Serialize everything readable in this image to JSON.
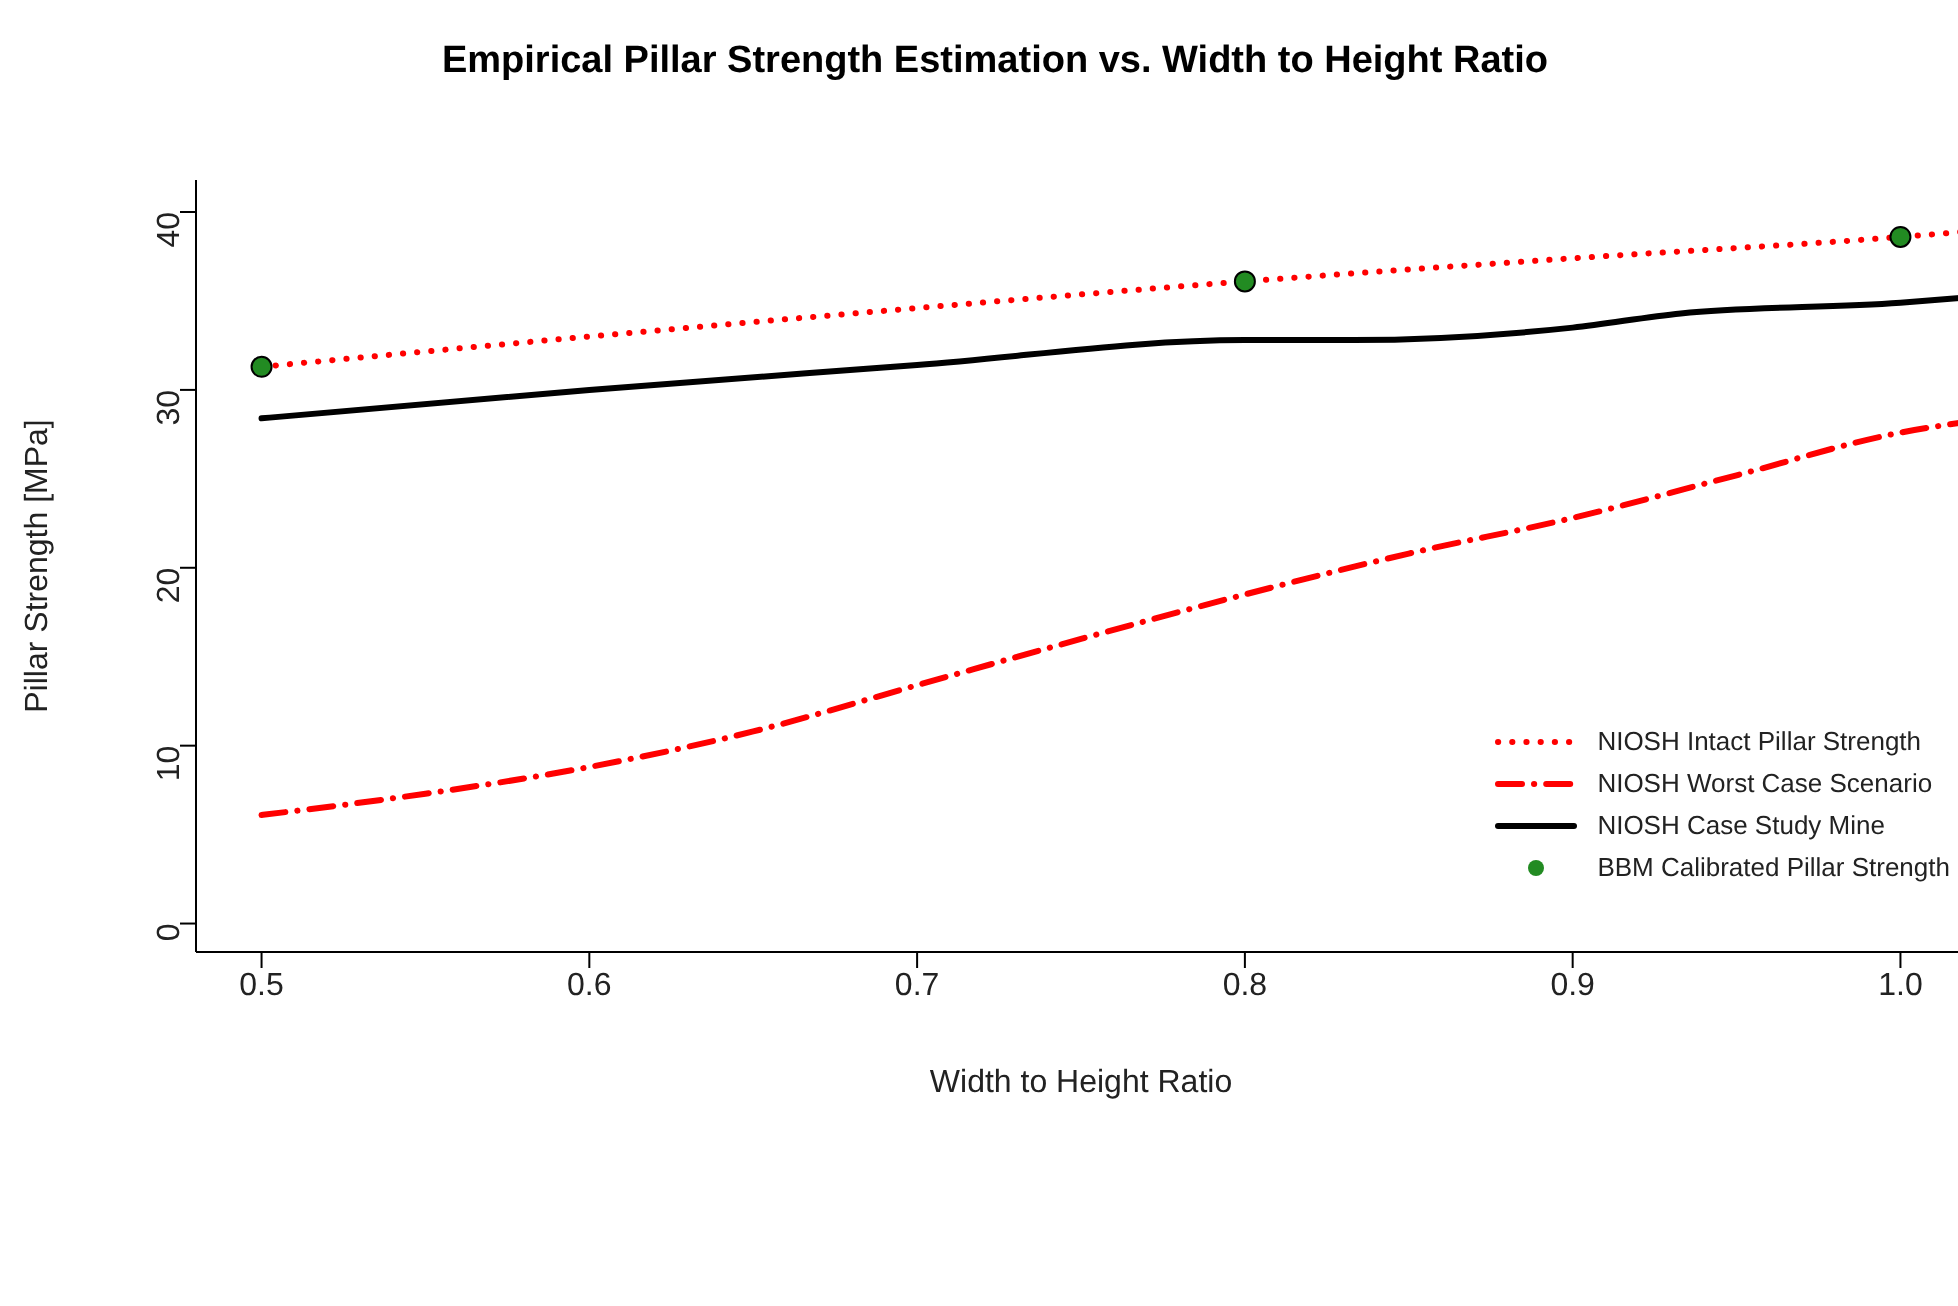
{
  "chart_data": {
    "type": "line",
    "title": "Empirical Pillar Strength Estimation vs. Width to Height Ratio",
    "xlabel": "Width to Height Ratio",
    "ylabel": "Pillar Strength [MPa]",
    "xlim": [
      0.48,
      1.02
    ],
    "xticks": [
      0.5,
      0.6,
      0.7,
      0.8,
      0.9,
      {
        "value": 1.0,
        "label": "1.0"
      }
    ],
    "ylim": [
      -1.6,
      41.8
    ],
    "yticks": [
      0,
      10,
      20,
      30,
      40
    ],
    "grid": false,
    "legend": "bottom right",
    "series": [
      {
        "name": "NIOSH Intact Pillar Strength",
        "color": "#ff0000",
        "line_style": "dotted",
        "marker": "none",
        "x": [
          0.5,
          0.6,
          0.7,
          0.8,
          0.9,
          1.0,
          1.02
        ],
        "values": [
          31.3,
          33.0,
          34.6,
          36.1,
          37.4,
          38.6,
          38.9
        ]
      },
      {
        "name": "NIOSH Worst Case Scenario",
        "color": "#ff0000",
        "line_style": "dashdot",
        "marker": "none",
        "x": [
          0.5,
          0.55,
          0.6,
          0.65,
          0.7,
          0.75,
          0.8,
          0.85,
          0.9,
          0.95,
          1.0,
          1.02
        ],
        "values": [
          6.1,
          7.3,
          8.8,
          10.8,
          13.4,
          16.0,
          18.5,
          20.8,
          22.8,
          25.2,
          27.6,
          28.2
        ]
      },
      {
        "name": "NIOSH Case Study Mine",
        "color": "#000000",
        "line_style": "solid",
        "marker": "none",
        "x": [
          0.5,
          0.6,
          0.7,
          0.8,
          0.833,
          0.9,
          0.933,
          1.0,
          1.02
        ],
        "values": [
          28.4,
          30.0,
          31.4,
          32.8,
          32.8,
          33.5,
          34.3,
          34.9,
          35.2
        ]
      },
      {
        "name": "BBM Calibrated Pillar Strength",
        "type": "scatter",
        "color": "#228b22",
        "marker": "circle",
        "x": [
          0.5,
          0.8,
          1.0
        ],
        "values": [
          31.3,
          36.1,
          38.6
        ]
      }
    ]
  }
}
